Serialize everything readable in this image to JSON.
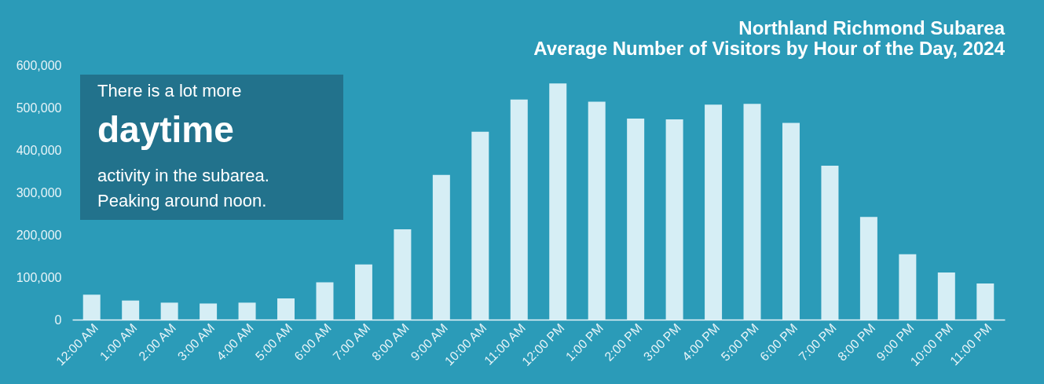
{
  "chart_data": {
    "type": "bar",
    "title": [
      "Northland Richmond Subarea",
      "Average Number of  Visitors by Hour of the Day, 2024"
    ],
    "categories": [
      "12:00 AM",
      "1:00 AM",
      "2:00 AM",
      "3:00 AM",
      "4:00 AM",
      "5:00 AM",
      "6:00 AM",
      "7:00 AM",
      "8:00 AM",
      "9:00 AM",
      "10:00 AM",
      "11:00 AM",
      "12:00 PM",
      "1:00 PM",
      "2:00 PM",
      "3:00 PM",
      "4:00 PM",
      "5:00 PM",
      "6:00 PM",
      "7:00 PM",
      "8:00 PM",
      "9:00 PM",
      "10:00 PM",
      "11:00 PM"
    ],
    "values": [
      59000,
      45000,
      40000,
      38000,
      40000,
      50000,
      88000,
      130000,
      213000,
      341000,
      443000,
      519000,
      557000,
      514000,
      474000,
      472000,
      507000,
      509000,
      464000,
      363000,
      242000,
      154000,
      111000,
      85000
    ],
    "color": "#d6eef5",
    "ylim": [
      0,
      600000
    ],
    "yticks": [
      {
        "value": 0,
        "label": "0"
      },
      {
        "value": 100000,
        "label": "100,000"
      },
      {
        "value": 200000,
        "label": "200,000"
      },
      {
        "value": 300000,
        "label": "300,000"
      },
      {
        "value": 400000,
        "label": "400,000"
      },
      {
        "value": 500000,
        "label": "500,000"
      },
      {
        "value": 600000,
        "label": "600,000"
      }
    ],
    "grid": false,
    "annotations": [
      "There is a lot more",
      "daytime",
      "activity in the subarea.",
      "Peaking around noon."
    ]
  }
}
